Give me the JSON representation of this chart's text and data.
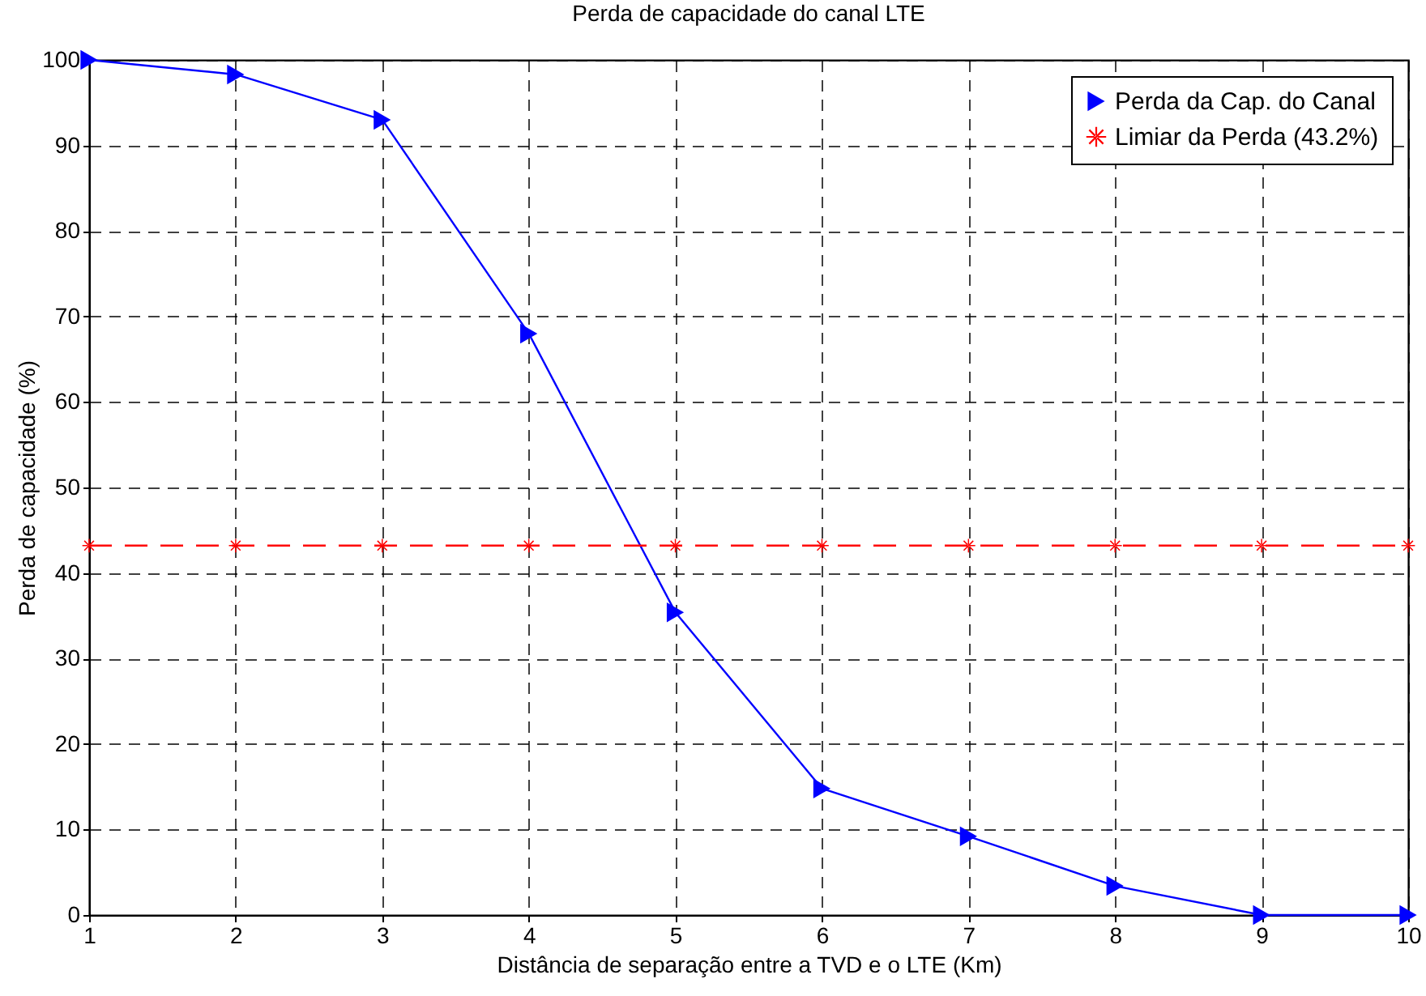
{
  "chart_data": {
    "type": "line",
    "title": "Perda de capacidade do canal LTE",
    "xlabel": "Distância de separação entre a TVD e o LTE (Km)",
    "ylabel": "Perda de capacidade (%)",
    "x": [
      1,
      2,
      3,
      4,
      5,
      6,
      7,
      8,
      9,
      10
    ],
    "xlim": [
      1,
      10
    ],
    "xticks": [
      1,
      2,
      3,
      4,
      5,
      6,
      7,
      8,
      9,
      10
    ],
    "ylim": [
      0,
      100
    ],
    "yticks": [
      0,
      10,
      20,
      30,
      40,
      50,
      60,
      70,
      80,
      90,
      100
    ],
    "grid": true,
    "legend": "top right",
    "series": [
      {
        "name": "Perda da Cap. do Canal",
        "color": "#0000ff",
        "values": [
          100,
          98.3,
          93,
          68,
          35.4,
          14.8,
          9.2,
          3.4,
          0,
          0
        ],
        "marker": "triangle",
        "line_style": "solid"
      },
      {
        "name": "Limiar da Perda (43.2%)",
        "color": "#ff0000",
        "values": [
          43.2,
          43.2,
          43.2,
          43.2,
          43.2,
          43.2,
          43.2,
          43.2,
          43.2,
          43.2
        ],
        "marker": "star",
        "line_style": "dashed"
      }
    ]
  }
}
